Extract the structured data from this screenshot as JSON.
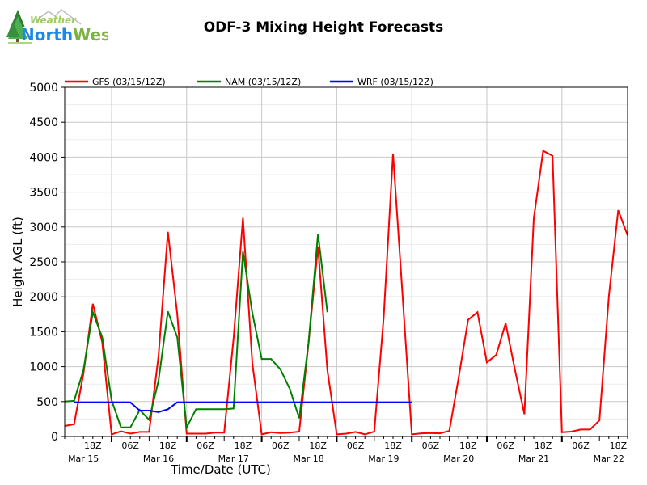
{
  "header": {
    "logo_word1": "Weather",
    "logo_word2_part1": "North",
    "logo_word2_part2": "West"
  },
  "chart_data": {
    "type": "line",
    "title": "ODF-3 Mixing Height Forecasts",
    "xlabel": "Time/Date (UTC)",
    "ylabel": "Height AGL (ft)",
    "ylim": [
      0,
      5000
    ],
    "yticks": [
      0,
      500,
      1000,
      1500,
      2000,
      2500,
      3000,
      3500,
      4000,
      4500,
      5000
    ],
    "x_units": "hours since Mar 15 00Z",
    "xlim": [
      9,
      189
    ],
    "xticks": [
      {
        "x": 18,
        "label": "18Z"
      },
      {
        "x": 30,
        "label": "06Z"
      },
      {
        "x": 42,
        "label": "18Z"
      },
      {
        "x": 54,
        "label": "06Z"
      },
      {
        "x": 66,
        "label": "18Z"
      },
      {
        "x": 78,
        "label": "06Z"
      },
      {
        "x": 90,
        "label": "18Z"
      },
      {
        "x": 102,
        "label": "06Z"
      },
      {
        "x": 114,
        "label": "18Z"
      },
      {
        "x": 126,
        "label": "06Z"
      },
      {
        "x": 138,
        "label": "18Z"
      },
      {
        "x": 150,
        "label": "06Z"
      },
      {
        "x": 162,
        "label": "18Z"
      },
      {
        "x": 174,
        "label": "06Z"
      },
      {
        "x": 186,
        "label": "18Z"
      }
    ],
    "date_labels": [
      {
        "x": 15,
        "label": "Mar 15"
      },
      {
        "x": 39,
        "label": "Mar 16"
      },
      {
        "x": 63,
        "label": "Mar 17"
      },
      {
        "x": 87,
        "label": "Mar 18"
      },
      {
        "x": 111,
        "label": "Mar 19"
      },
      {
        "x": 135,
        "label": "Mar 20"
      },
      {
        "x": 159,
        "label": "Mar 21"
      },
      {
        "x": 183,
        "label": "Mar 22"
      }
    ],
    "legend_position": "top",
    "series": [
      {
        "name": "GFS (03/15/12Z)",
        "color": "#ff0000",
        "x": [
          9,
          12,
          15,
          18,
          21,
          24,
          27,
          30,
          33,
          36,
          39,
          42,
          45,
          48,
          51,
          54,
          57,
          60,
          63,
          66,
          69,
          72,
          75,
          78,
          81,
          84,
          87,
          90,
          93,
          96,
          99,
          102,
          105,
          108,
          111,
          114,
          117,
          120,
          123,
          126,
          129,
          132,
          135,
          138,
          141,
          144,
          147,
          150,
          153,
          156,
          159,
          162,
          165,
          168,
          171,
          174,
          177,
          180,
          183,
          186,
          189
        ],
        "values": [
          150,
          175,
          900,
          1900,
          1350,
          30,
          75,
          40,
          65,
          65,
          1150,
          2930,
          1750,
          40,
          40,
          40,
          55,
          55,
          1400,
          3130,
          1050,
          30,
          60,
          50,
          55,
          70,
          1350,
          2720,
          950,
          30,
          40,
          65,
          30,
          70,
          1700,
          4050,
          2050,
          30,
          45,
          50,
          45,
          80,
          850,
          1670,
          1780,
          1060,
          1170,
          1620,
          950,
          320,
          3120,
          4090,
          4020,
          60,
          70,
          100,
          100,
          230,
          2000,
          3240,
          2880
        ]
      },
      {
        "name": "NAM (03/15/12Z)",
        "color": "#008000",
        "x": [
          9,
          12,
          15,
          18,
          21,
          24,
          27,
          30,
          33,
          36,
          39,
          42,
          45,
          48,
          51,
          54,
          57,
          60,
          63,
          66,
          69,
          72,
          75,
          78,
          81,
          84,
          87,
          90,
          93
        ],
        "values": [
          500,
          510,
          950,
          1780,
          1420,
          520,
          130,
          130,
          380,
          240,
          800,
          1790,
          1420,
          130,
          390,
          390,
          390,
          390,
          400,
          2650,
          1770,
          1110,
          1110,
          960,
          680,
          260,
          1350,
          2900,
          1780
        ]
      },
      {
        "name": "WRF (03/15/12Z)",
        "color": "#0000ff",
        "x": [
          12,
          15,
          18,
          21,
          24,
          27,
          30,
          33,
          36,
          39,
          42,
          45,
          48,
          51,
          54,
          57,
          60,
          63,
          66,
          69,
          72,
          75,
          78,
          81,
          84,
          87,
          90,
          93,
          96,
          99,
          102,
          105,
          108,
          111,
          114,
          117,
          120
        ],
        "values": [
          490,
          490,
          490,
          490,
          490,
          490,
          490,
          370,
          370,
          350,
          390,
          490,
          490,
          490,
          490,
          490,
          490,
          490,
          490,
          490,
          490,
          490,
          490,
          490,
          490,
          490,
          490,
          490,
          490,
          490,
          490,
          490,
          490,
          490,
          490,
          490,
          490
        ]
      }
    ]
  }
}
